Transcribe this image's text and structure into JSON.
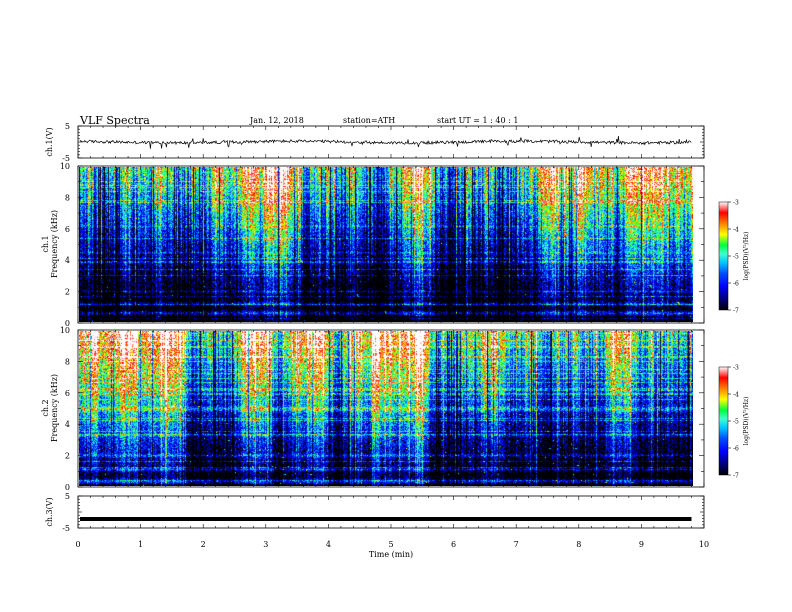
{
  "header": {
    "title": "VLF  Spectra",
    "date": "Jan. 12, 2018",
    "station": "station=ATH",
    "start": "start  UT  =   1 : 40 : 1"
  },
  "colors": {
    "black": "#000000",
    "navy": "#00007a",
    "blue": "#0000ff",
    "mid_blue": "#0050ff",
    "cyan": "#00c8ff",
    "aqua": "#40ffd0",
    "green": "#00ff40",
    "yellow": "#ffff00",
    "orange": "#ff8000",
    "red": "#ff0000",
    "white": "#ffffff"
  },
  "chart_data": [
    {
      "type": "line",
      "name": "ch1-waveform",
      "ylabel": "ch.1(V)",
      "ylim": [
        -5,
        5
      ],
      "yticks": [
        -5,
        5
      ],
      "xlim": [
        0,
        10
      ],
      "signal_x_max": 9.8,
      "baseline_v": 0.0
    },
    {
      "type": "heatmap",
      "name": "ch1-spectrogram",
      "ylabel": "ch.1\nFrequency  (kHz)",
      "ylim": [
        0,
        10
      ],
      "yticks": [
        0,
        2,
        4,
        6,
        8,
        10
      ],
      "xlim": [
        0,
        10
      ],
      "signal_x_max": 9.8,
      "colorbar": {
        "label": "log(PSD)(V²/Hz)",
        "range": [
          -7,
          -3
        ],
        "ticks": [
          -7,
          -6,
          -5,
          -4,
          -3
        ]
      }
    },
    {
      "type": "heatmap",
      "name": "ch2-spectrogram",
      "ylabel": "ch.2\nFrequency  (kHz)",
      "ylim": [
        0,
        10
      ],
      "yticks": [
        0,
        2,
        4,
        6,
        8,
        10
      ],
      "xlim": [
        0,
        10
      ],
      "signal_x_max": 9.8,
      "colorbar": {
        "label": "log(PSD)(V²/Hz)",
        "range": [
          -7,
          -3
        ],
        "ticks": [
          -7,
          -6,
          -5,
          -4,
          -3
        ]
      }
    },
    {
      "type": "line",
      "name": "ch3-waveform",
      "ylabel": "ch.3(V)",
      "ylim": [
        -5,
        5
      ],
      "yticks": [
        -5,
        5
      ],
      "xlim": [
        0,
        10
      ],
      "xticks": [
        0,
        1,
        2,
        3,
        4,
        5,
        6,
        7,
        8,
        9,
        10
      ],
      "xlabel": "Time  (min)",
      "signal_x_max": 9.8,
      "baseline_v": -2.2
    }
  ]
}
